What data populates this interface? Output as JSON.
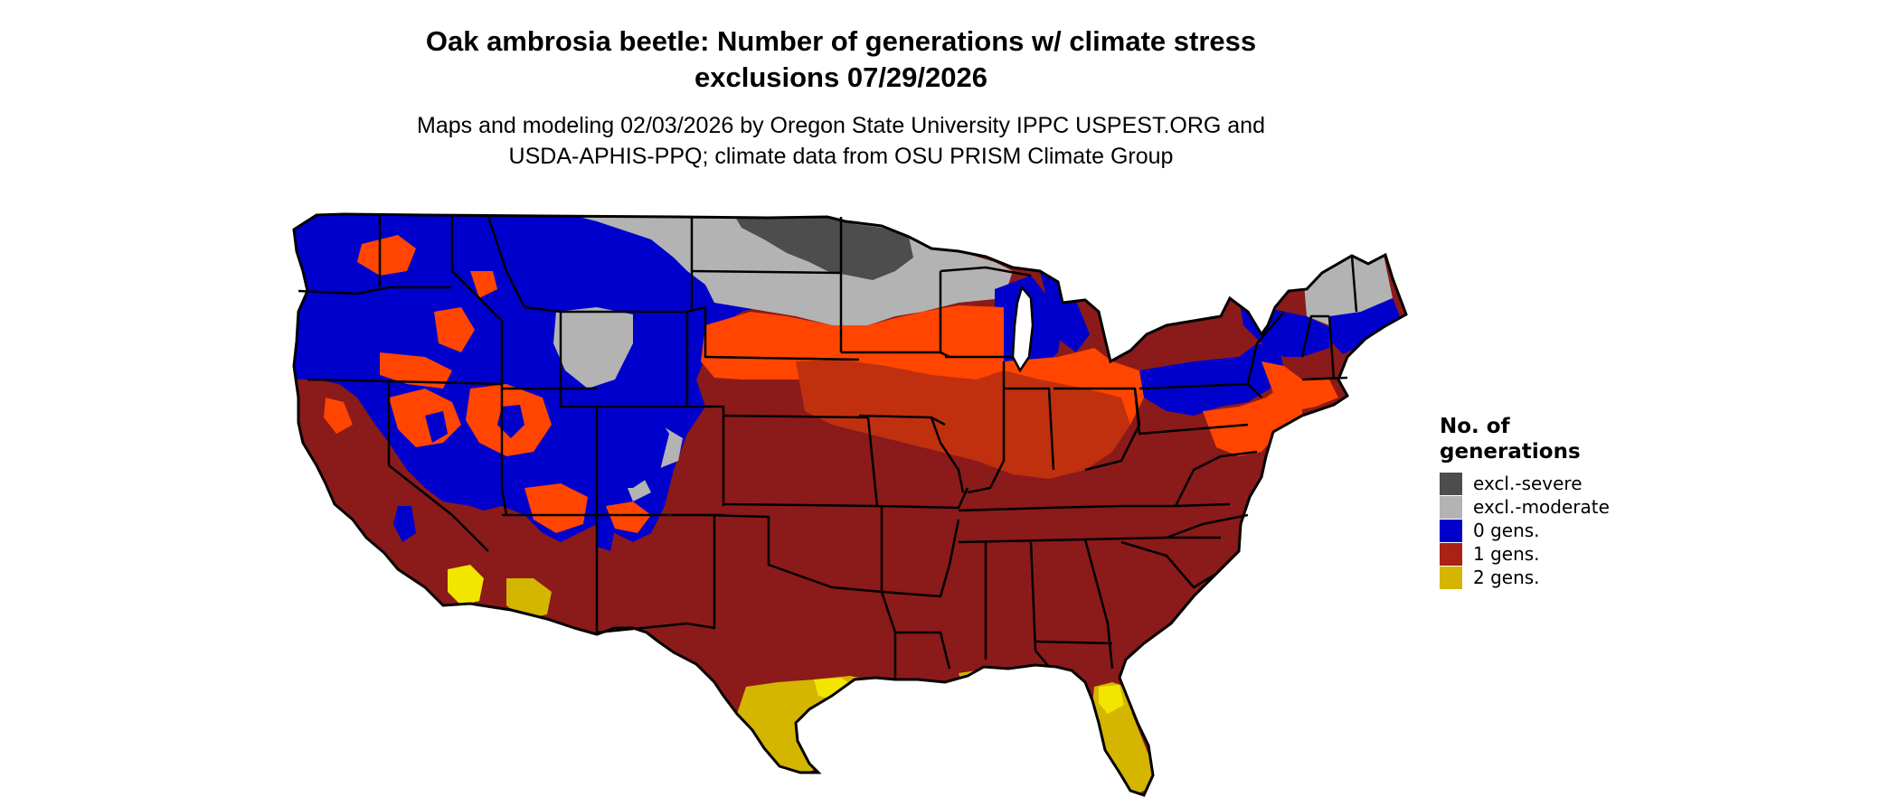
{
  "title": {
    "line1": "Oak ambrosia beetle: Number of generations w/ climate stress",
    "line2": "exclusions 07/29/2026"
  },
  "subtitle": {
    "line1": "Maps and modeling 02/03/2026 by Oregon State University IPPC USPEST.ORG and",
    "line2": "USDA-APHIS-PPQ; climate data from OSU PRISM Climate Group"
  },
  "legend": {
    "title_line1": "No. of",
    "title_line2": "generations",
    "items": [
      {
        "label": "excl.-severe",
        "color": "#4d4d4d"
      },
      {
        "label": "excl.-moderate",
        "color": "#b3b3b3"
      },
      {
        "label": "0 gens.",
        "color": "#0000cc"
      },
      {
        "label": "1 gens.",
        "color": "#aa2214"
      },
      {
        "label": "2 gens.",
        "color": "#d4b500"
      }
    ]
  },
  "map_colors": {
    "excl_severe": "#4d4d4d",
    "excl_moderate": "#b3b3b3",
    "zero_gens": "#0000cc",
    "one_gen_dark": "#8b1a1a",
    "one_gen_mid": "#c0300f",
    "one_gen_light": "#ff4500",
    "two_gens": "#d4b500",
    "two_gens_bright": "#f2e600",
    "boundary": "#000000"
  }
}
